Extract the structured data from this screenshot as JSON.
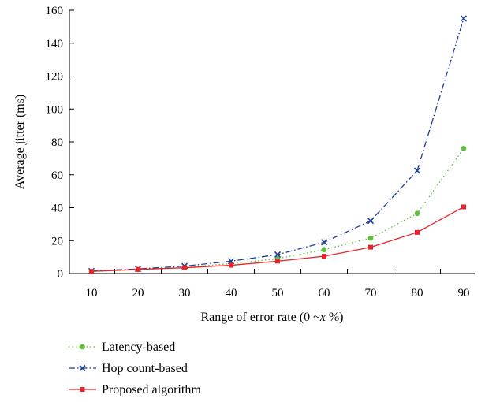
{
  "chart_data": {
    "type": "line",
    "title": "",
    "xlabel": "Range of error rate (0 ~x %)",
    "xlabel_parts": {
      "before": "Range of error rate (0 ~",
      "italic": "x",
      "after": " %)"
    },
    "ylabel": "Average jitter (ms)",
    "x": [
      10,
      20,
      30,
      40,
      50,
      60,
      70,
      80,
      90
    ],
    "xticks": [
      "10",
      "20",
      "30",
      "40",
      "50",
      "60",
      "70",
      "80",
      "90"
    ],
    "yticks": [
      "0",
      "20",
      "40",
      "60",
      "80",
      "100",
      "120",
      "140",
      "160"
    ],
    "ylim": [
      0,
      160
    ],
    "grid": false,
    "legend_position": "bottom-left",
    "series": [
      {
        "name": "Latency-based",
        "color": "#5bbf3a",
        "marker": "circle",
        "dash": "dotted",
        "values": [
          1.2,
          2.4,
          3.8,
          6.0,
          9.0,
          14.5,
          21.5,
          36.5,
          76.0
        ]
      },
      {
        "name": "Hop count-based",
        "color": "#1f3f9c",
        "marker": "x",
        "dash": "dashdot",
        "values": [
          1.5,
          2.8,
          4.5,
          7.5,
          11.5,
          19.0,
          32.0,
          62.5,
          155.0
        ]
      },
      {
        "name": "Proposed algorithm",
        "color": "#e8242a",
        "marker": "square",
        "dash": "solid",
        "values": [
          1.3,
          2.5,
          3.5,
          5.0,
          7.5,
          10.5,
          16.0,
          25.0,
          40.5
        ]
      }
    ]
  }
}
